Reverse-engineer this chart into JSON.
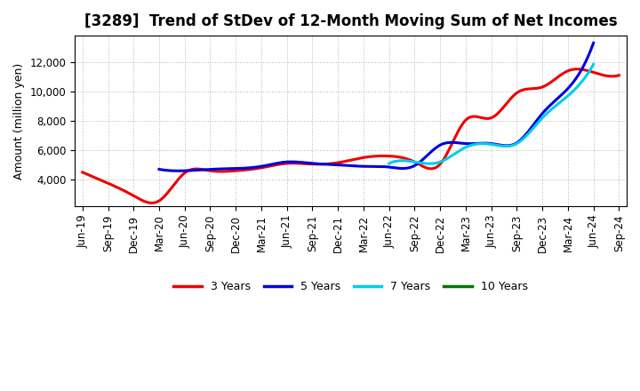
{
  "title": "[3289]  Trend of StDev of 12-Month Moving Sum of Net Incomes",
  "ylabel": "Amount (million yen)",
  "background_color": "#ffffff",
  "grid_color": "#888888",
  "x_labels": [
    "Jun-19",
    "Sep-19",
    "Dec-19",
    "Mar-20",
    "Jun-20",
    "Sep-20",
    "Dec-20",
    "Mar-21",
    "Jun-21",
    "Sep-21",
    "Dec-21",
    "Mar-22",
    "Jun-22",
    "Sep-22",
    "Dec-22",
    "Mar-23",
    "Jun-23",
    "Sep-23",
    "Dec-23",
    "Mar-24",
    "Jun-24",
    "Sep-24"
  ],
  "series": {
    "3 Years": {
      "color": "#ee0000",
      "linewidth": 2.2,
      "values": [
        4500,
        3750,
        2900,
        2550,
        4450,
        4600,
        4600,
        4800,
        5100,
        5050,
        5150,
        5500,
        5600,
        5200,
        5050,
        8050,
        8200,
        9900,
        10300,
        11400,
        11300,
        11100
      ]
    },
    "5 Years": {
      "color": "#0000dd",
      "linewidth": 2.2,
      "values": [
        null,
        null,
        null,
        4700,
        4600,
        4700,
        4750,
        4900,
        5200,
        5100,
        5000,
        4900,
        4850,
        4950,
        6350,
        6450,
        6450,
        6500,
        8500,
        10200,
        13300,
        null
      ]
    },
    "7 Years": {
      "color": "#00ccee",
      "linewidth": 2.2,
      "values": [
        null,
        null,
        null,
        null,
        null,
        null,
        null,
        null,
        null,
        null,
        null,
        null,
        5100,
        5200,
        5200,
        6200,
        6400,
        6450,
        8200,
        9700,
        11850,
        null
      ]
    },
    "10 Years": {
      "color": "#007700",
      "linewidth": 2.2,
      "values": [
        null,
        null,
        null,
        null,
        null,
        null,
        null,
        null,
        null,
        null,
        null,
        null,
        null,
        null,
        null,
        null,
        null,
        null,
        null,
        null,
        null,
        null
      ]
    }
  },
  "ylim": [
    2200,
    13800
  ],
  "yticks": [
    4000,
    6000,
    8000,
    10000,
    12000
  ],
  "title_fontsize": 12,
  "label_fontsize": 9,
  "tick_fontsize": 8.5
}
